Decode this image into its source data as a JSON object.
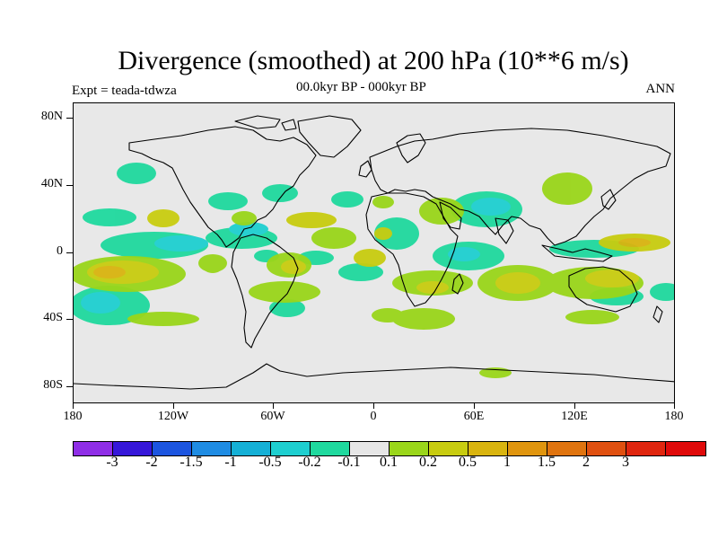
{
  "title": "Divergence (smoothed) at 200 hPa (10**6 m/s)",
  "subtitle_left": "Expt = teada-tdwza",
  "subtitle_center": "00.0kyr BP - 000kyr BP",
  "subtitle_right": "ANN",
  "lat_labels": [
    "80N",
    "40N",
    "0",
    "40S",
    "80S"
  ],
  "lon_labels": [
    "180",
    "120W",
    "60W",
    "0",
    "60E",
    "120E",
    "180"
  ],
  "colorbar": {
    "colors": [
      "#8f2ee6",
      "#3617d9",
      "#1c55e0",
      "#1f8ce3",
      "#15b0d6",
      "#1ecfd0",
      "#1fd99e",
      "#e6e6e6",
      "#9ad61a",
      "#c8cc10",
      "#d9b40f",
      "#e0950e",
      "#e0740f",
      "#e05010",
      "#e0260f",
      "#e00a0a"
    ],
    "labels": [
      "-3",
      "-2",
      "-1.5",
      "-1",
      "-0.5",
      "-0.2",
      "-0.1",
      "0.1",
      "0.2",
      "0.5",
      "1",
      "1.5",
      "2",
      "3"
    ]
  },
  "colors": {
    "background": "#e8e8e8",
    "neg_light": "#1fd99e",
    "neg_mid": "#1ecfd0",
    "neg_strong": "#15b0d6",
    "pos_light": "#9ad61a",
    "pos_mid": "#c8cc10",
    "pos_strong": "#d9b40f",
    "pos_stronger": "#e0950e"
  }
}
